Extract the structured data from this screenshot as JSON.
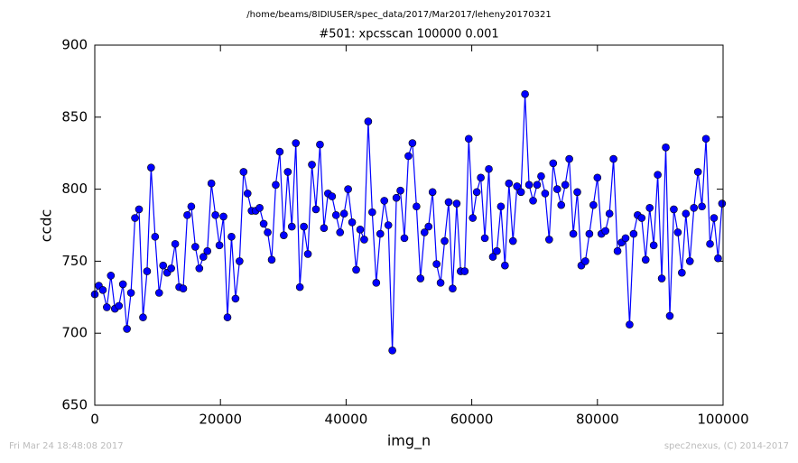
{
  "chart_data": {
    "type": "line",
    "file_title": "/home/beams/8IDIUSER/spec_data/2017/Mar2017/leheny20170321",
    "title": "#501: xpcsscan 100000 0.001",
    "xlabel": "img_n",
    "ylabel": "ccdc",
    "footer_left": "Fri Mar 24 18:48:08 2017",
    "footer_right": "spec2nexus, (C) 2014-2017",
    "xlim": [
      0,
      100000
    ],
    "ylim": [
      650,
      900
    ],
    "xticks": [
      0,
      20000,
      40000,
      60000,
      80000,
      100000
    ],
    "yticks": [
      650,
      700,
      750,
      800,
      850,
      900
    ],
    "grid": false,
    "x": [
      0,
      640,
      1280,
      1920,
      2560,
      3200,
      3840,
      4480,
      5120,
      5760,
      6400,
      7040,
      7680,
      8320,
      8960,
      9600,
      10240,
      10880,
      11520,
      12160,
      12800,
      13440,
      14080,
      14720,
      15360,
      16000,
      16640,
      17280,
      17920,
      18560,
      19200,
      19840,
      20480,
      21120,
      21760,
      22400,
      23040,
      23680,
      24320,
      24960,
      25600,
      26240,
      26880,
      27520,
      28160,
      28800,
      29440,
      30080,
      30720,
      31360,
      32000,
      32640,
      33280,
      33920,
      34560,
      35200,
      35840,
      36480,
      37120,
      37760,
      38400,
      39040,
      39680,
      40320,
      40960,
      41600,
      42240,
      42880,
      43520,
      44160,
      44800,
      45440,
      46080,
      46720,
      47360,
      48000,
      48640,
      49280,
      49920,
      50560,
      51200,
      51840,
      52480,
      53120,
      53760,
      54400,
      55040,
      55680,
      56320,
      56960,
      57600,
      58240,
      58880,
      59520,
      60160,
      60800,
      61440,
      62080,
      62720,
      63360,
      64000,
      64640,
      65280,
      65920,
      66560,
      67200,
      67840,
      68480,
      69120,
      69760,
      70400,
      71040,
      71680,
      72320,
      72960,
      73600,
      74240,
      74880,
      75520,
      76160,
      76800,
      77440,
      78080,
      78720,
      79360,
      80000,
      80640,
      81280,
      81920,
      82560,
      83200,
      83840,
      84480,
      85120,
      85760,
      86400,
      87040,
      87680,
      88320,
      88960,
      89600,
      90240,
      90880,
      91520,
      92160,
      92800,
      93440,
      94080,
      94720,
      95360,
      96000,
      96640,
      97280,
      97920,
      98560,
      99200,
      99840
    ],
    "series": [
      {
        "name": "ccdc",
        "color": "#0000ff",
        "values": [
          727,
          733,
          730,
          718,
          740,
          717,
          719,
          734,
          703,
          728,
          780,
          786,
          711,
          743,
          815,
          767,
          728,
          747,
          742,
          745,
          762,
          732,
          731,
          782,
          788,
          760,
          745,
          753,
          757,
          804,
          782,
          761,
          781,
          711,
          767,
          724,
          750,
          812,
          797,
          785,
          785,
          787,
          776,
          770,
          751,
          803,
          826,
          768,
          812,
          774,
          832,
          732,
          774,
          755,
          817,
          786,
          831,
          773,
          797,
          795,
          782,
          770,
          783,
          800,
          777,
          744,
          772,
          765,
          847,
          784,
          735,
          769,
          792,
          775,
          688,
          794,
          799,
          766,
          823,
          832,
          788,
          738,
          770,
          774,
          798,
          748,
          735,
          764,
          791,
          731,
          790,
          743,
          743,
          835,
          780,
          798,
          808,
          766,
          814,
          753,
          757,
          788,
          747,
          804,
          764,
          802,
          798,
          866,
          803,
          792,
          803,
          809,
          797,
          765,
          818,
          800,
          789,
          803,
          821,
          769,
          798,
          747,
          750,
          769,
          789,
          808,
          769,
          771,
          783,
          821,
          757,
          763,
          766,
          706,
          769,
          782,
          780,
          751,
          787,
          761,
          810,
          738,
          829,
          712,
          786,
          770,
          742,
          783,
          750,
          787,
          812,
          788,
          835,
          762,
          780,
          752,
          790
        ]
      }
    ]
  }
}
